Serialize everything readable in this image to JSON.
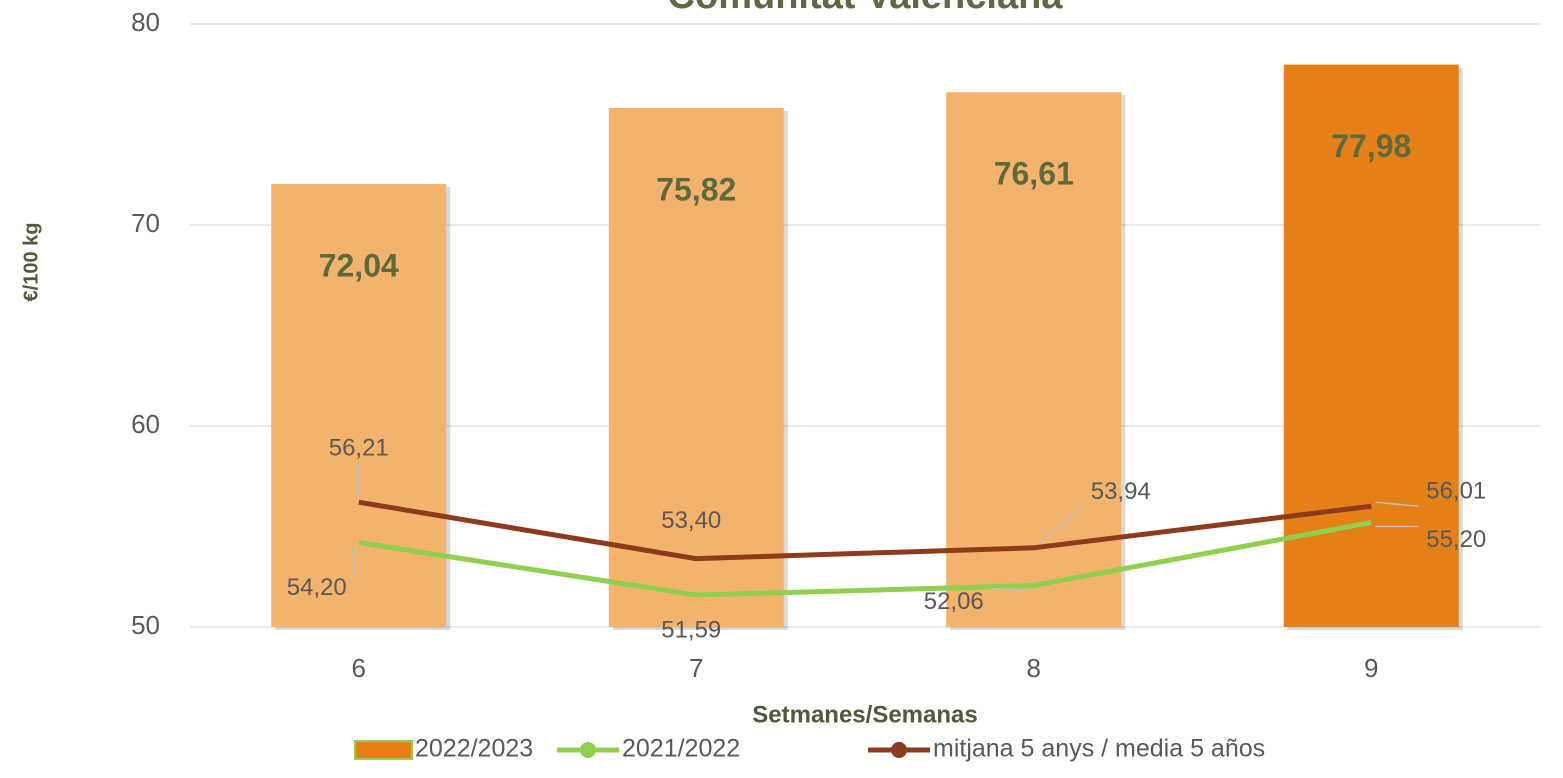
{
  "chart_data": {
    "type": "bar",
    "title": "Comunitat Valenciana",
    "x_label": "Setmanes/Semanas",
    "y_label": "€/100 kg",
    "categories": [
      "6",
      "7",
      "8",
      "9"
    ],
    "series": [
      {
        "name": "2022/2023",
        "type": "bar",
        "colors": [
          "#F4B36D",
          "#F4B36D",
          "#F4B36D",
          "#E48015"
        ],
        "values": [
          72.04,
          75.82,
          76.61,
          77.98
        ],
        "value_labels": [
          "72,04",
          "75,82",
          "76,61",
          "77,98"
        ]
      },
      {
        "name": "2021/2022",
        "type": "line",
        "color": "#8FD14F",
        "values": [
          54.2,
          51.59,
          52.06,
          55.2
        ],
        "value_labels": [
          "54,20",
          "51,59",
          "52,06",
          "55,20"
        ]
      },
      {
        "name": "mitjana 5 anys / media 5 años",
        "type": "line",
        "color": "#8E3B1D",
        "values": [
          56.21,
          53.4,
          53.94,
          56.01
        ],
        "value_labels": [
          "56,21",
          "53,40",
          "53,94",
          "56,01"
        ]
      }
    ],
    "ylim": [
      50,
      80
    ],
    "yticks": [
      50,
      60,
      70,
      80
    ],
    "grid": true,
    "legend": "bottom"
  }
}
